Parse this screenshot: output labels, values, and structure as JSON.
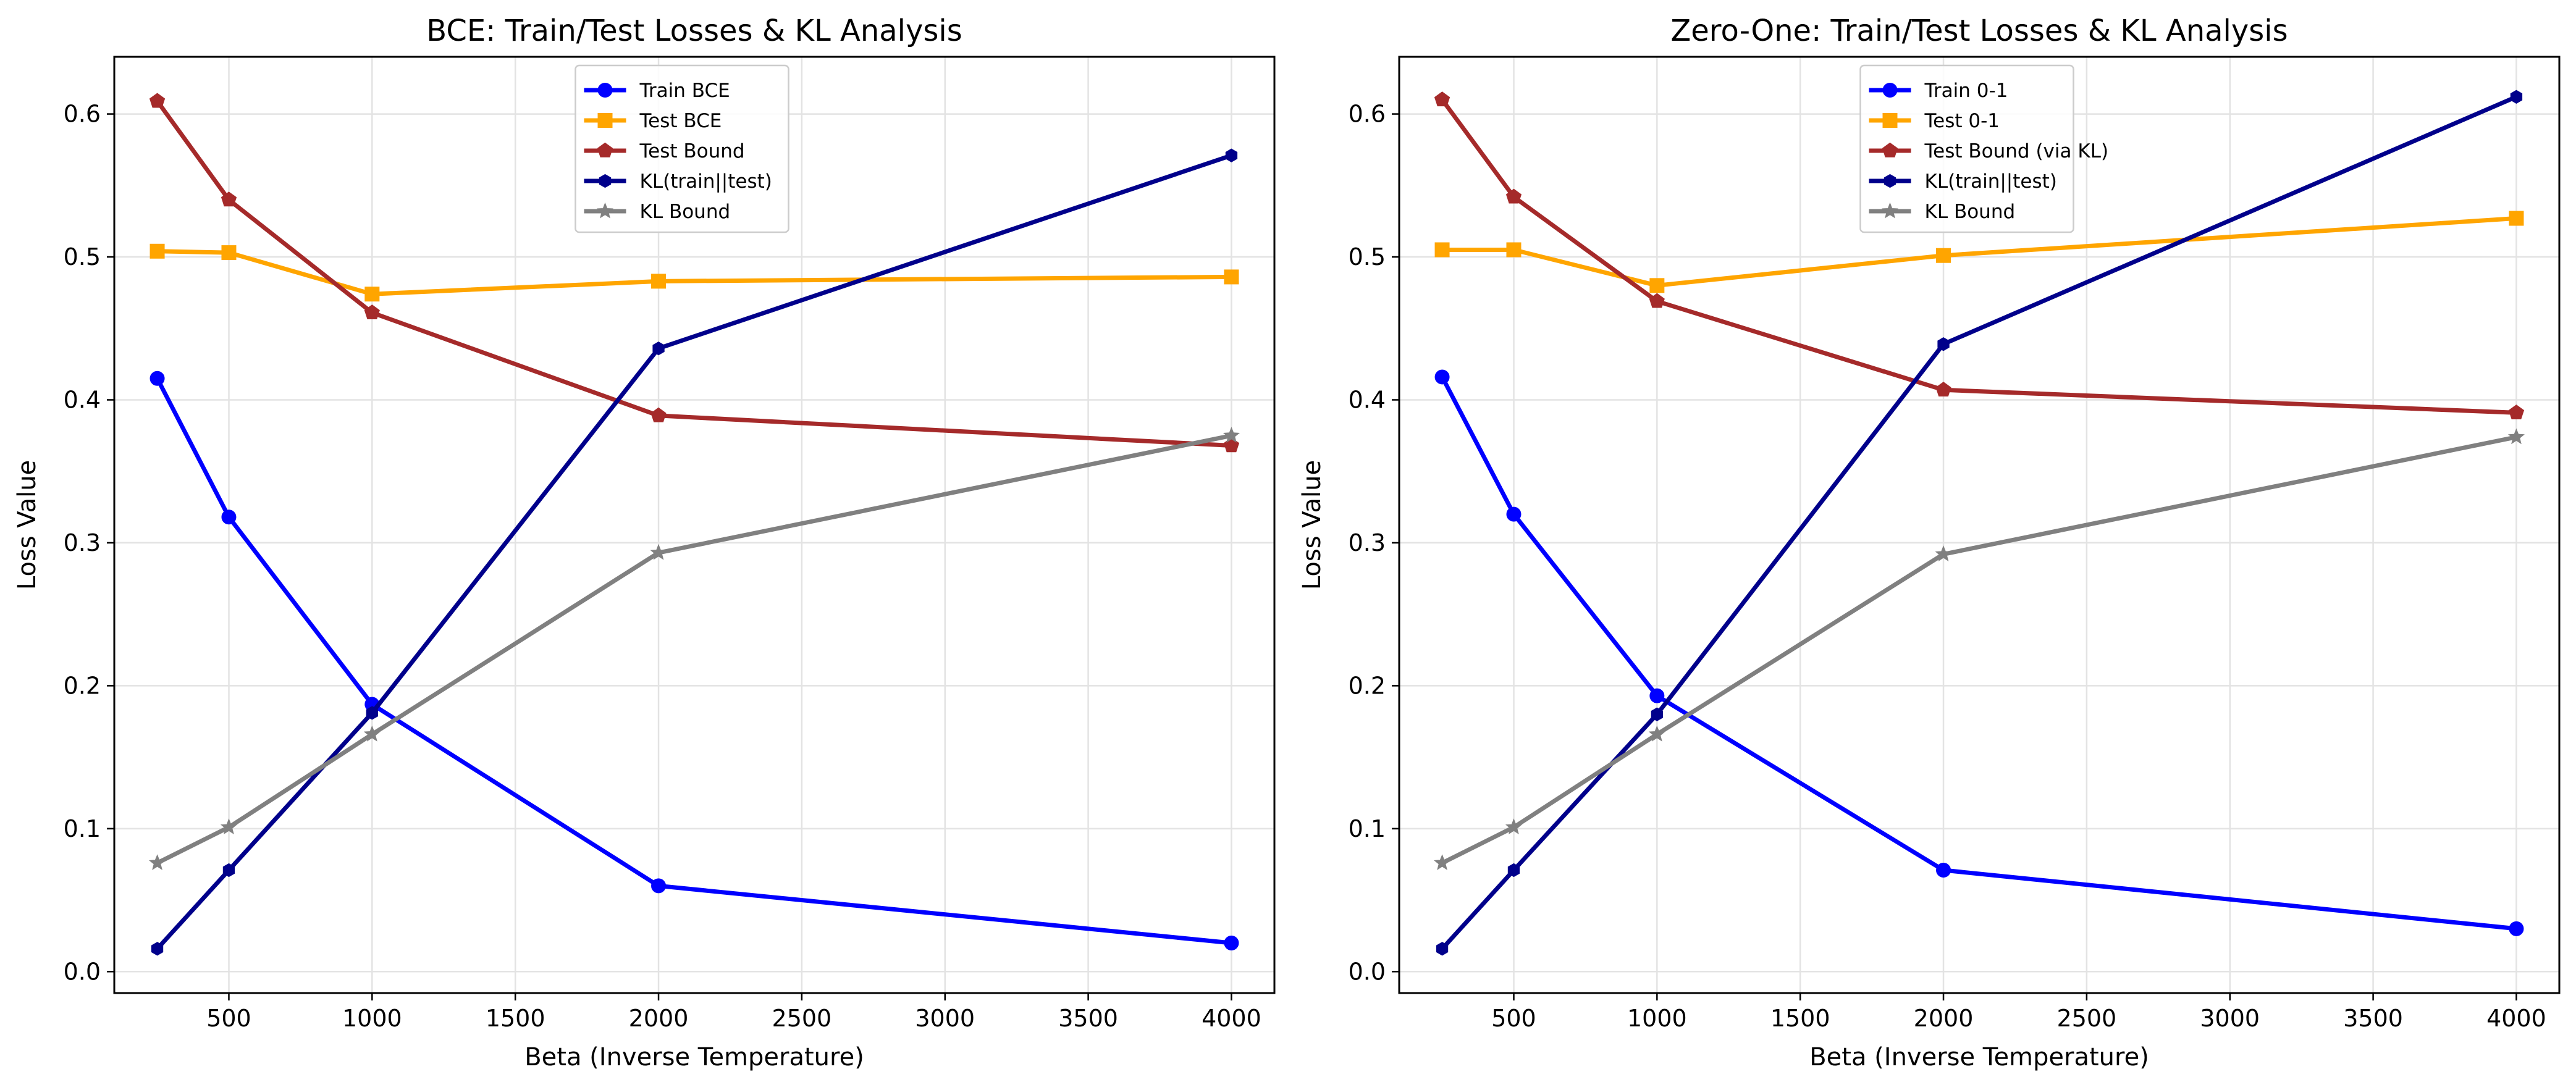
{
  "chart_data": [
    {
      "type": "line",
      "title": "BCE: Train/Test Losses & KL Analysis",
      "xlabel": "Beta (Inverse Temperature)",
      "ylabel": "Loss Value",
      "xlim": [
        100,
        4150
      ],
      "ylim": [
        -0.015,
        0.64
      ],
      "xticks": [
        500,
        1000,
        1500,
        2000,
        2500,
        3000,
        3500,
        4000
      ],
      "yticks": [
        0.0,
        0.1,
        0.2,
        0.3,
        0.4,
        0.5,
        0.6
      ],
      "grid": true,
      "legend_position": "upper center",
      "x": [
        250,
        500,
        1000,
        2000,
        4000
      ],
      "series": [
        {
          "name": "Train BCE",
          "color": "#0000ff",
          "marker": "circle",
          "values": [
            0.415,
            0.318,
            0.187,
            0.06,
            0.02
          ]
        },
        {
          "name": "Test BCE",
          "color": "#ffa500",
          "marker": "square",
          "values": [
            0.504,
            0.503,
            0.474,
            0.483,
            0.486
          ]
        },
        {
          "name": "Test Bound",
          "color": "#a52a2a",
          "marker": "pentagon",
          "values": [
            0.609,
            0.54,
            0.461,
            0.389,
            0.368
          ]
        },
        {
          "name": "KL(train||test)",
          "color": "#00008b",
          "marker": "hexagon",
          "values": [
            0.016,
            0.071,
            0.181,
            0.436,
            0.571
          ]
        },
        {
          "name": "KL Bound",
          "color": "#808080",
          "marker": "star",
          "values": [
            0.076,
            0.101,
            0.166,
            0.293,
            0.375
          ]
        }
      ]
    },
    {
      "type": "line",
      "title": "Zero-One: Train/Test Losses & KL Analysis",
      "xlabel": "Beta (Inverse Temperature)",
      "ylabel": "Loss Value",
      "xlim": [
        100,
        4150
      ],
      "ylim": [
        -0.015,
        0.64
      ],
      "xticks": [
        500,
        1000,
        1500,
        2000,
        2500,
        3000,
        3500,
        4000
      ],
      "yticks": [
        0.0,
        0.1,
        0.2,
        0.3,
        0.4,
        0.5,
        0.6
      ],
      "grid": true,
      "legend_position": "upper center",
      "x": [
        250,
        500,
        1000,
        2000,
        4000
      ],
      "series": [
        {
          "name": "Train 0-1",
          "color": "#0000ff",
          "marker": "circle",
          "values": [
            0.416,
            0.32,
            0.193,
            0.071,
            0.03
          ]
        },
        {
          "name": "Test 0-1",
          "color": "#ffa500",
          "marker": "square",
          "values": [
            0.505,
            0.505,
            0.48,
            0.501,
            0.527
          ]
        },
        {
          "name": "Test Bound (via KL)",
          "color": "#a52a2a",
          "marker": "pentagon",
          "values": [
            0.61,
            0.542,
            0.469,
            0.407,
            0.391
          ]
        },
        {
          "name": "KL(train||test)",
          "color": "#00008b",
          "marker": "hexagon",
          "values": [
            0.016,
            0.071,
            0.18,
            0.439,
            0.612
          ]
        },
        {
          "name": "KL Bound",
          "color": "#808080",
          "marker": "star",
          "values": [
            0.076,
            0.101,
            0.166,
            0.292,
            0.374
          ]
        }
      ]
    }
  ]
}
